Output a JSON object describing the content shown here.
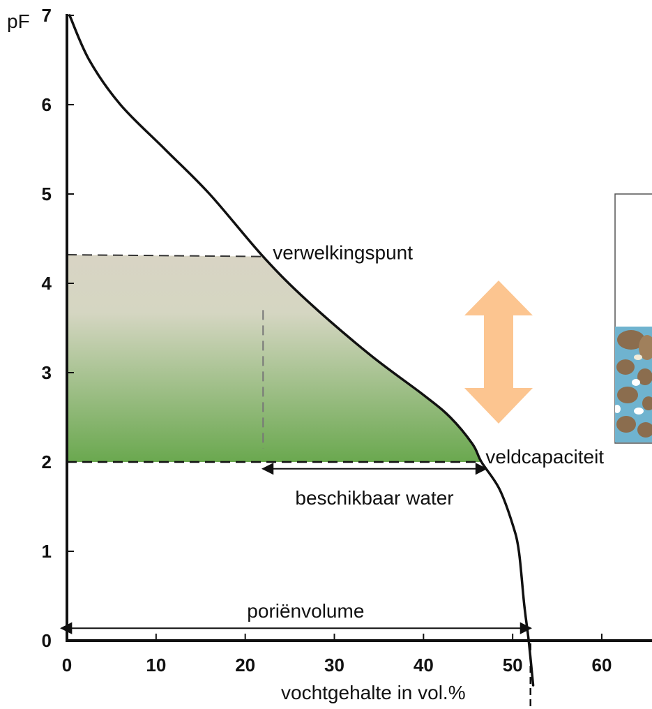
{
  "chart_data": {
    "type": "line",
    "ylabel": "pF",
    "xlabel": "vochtgehalte in vol.%",
    "xlim": [
      0,
      66
    ],
    "ylim": [
      0,
      7
    ],
    "x_ticks": [
      0,
      10,
      20,
      30,
      40,
      50,
      60
    ],
    "y_ticks": [
      0,
      1,
      2,
      3,
      4,
      5,
      6,
      7
    ],
    "grid": false,
    "series": [
      {
        "points": [
          [
            0.3,
            7.0
          ],
          [
            2.5,
            6.5
          ],
          [
            6,
            6.0
          ],
          [
            11,
            5.5
          ],
          [
            16,
            5.0
          ],
          [
            22,
            4.3
          ],
          [
            27,
            3.8
          ],
          [
            34,
            3.2
          ],
          [
            40,
            2.75
          ],
          [
            43,
            2.5
          ],
          [
            45.5,
            2.2
          ],
          [
            46.5,
            2.0
          ],
          [
            48.5,
            1.7
          ],
          [
            50,
            1.3
          ],
          [
            50.7,
            1.0
          ],
          [
            51.3,
            0.4
          ],
          [
            51.8,
            0.0
          ],
          [
            52.3,
            -0.5
          ]
        ]
      }
    ],
    "points_of_interest": {
      "wilting_point": {
        "x": 22,
        "y": 4.3,
        "label": "verwelkingspunt"
      },
      "field_capacity": {
        "x": 46.5,
        "y": 2.0,
        "label": "veldcapaciteit"
      }
    },
    "range_annotations": {
      "available_water": {
        "from": 22,
        "to": 47,
        "y": 1.9,
        "label": "beschikbaar water"
      },
      "pore_volume": {
        "from": 0,
        "to": 52,
        "y": 0.1,
        "label": "poriënvolume"
      }
    },
    "colors": {
      "curve": "#111111",
      "area_top": "#d8d4c4",
      "area_bottom": "#6aa84f",
      "arrow": "#fcc590",
      "inset_water": "#6fb3cf",
      "inset_grain": "#8b6d4e"
    }
  }
}
